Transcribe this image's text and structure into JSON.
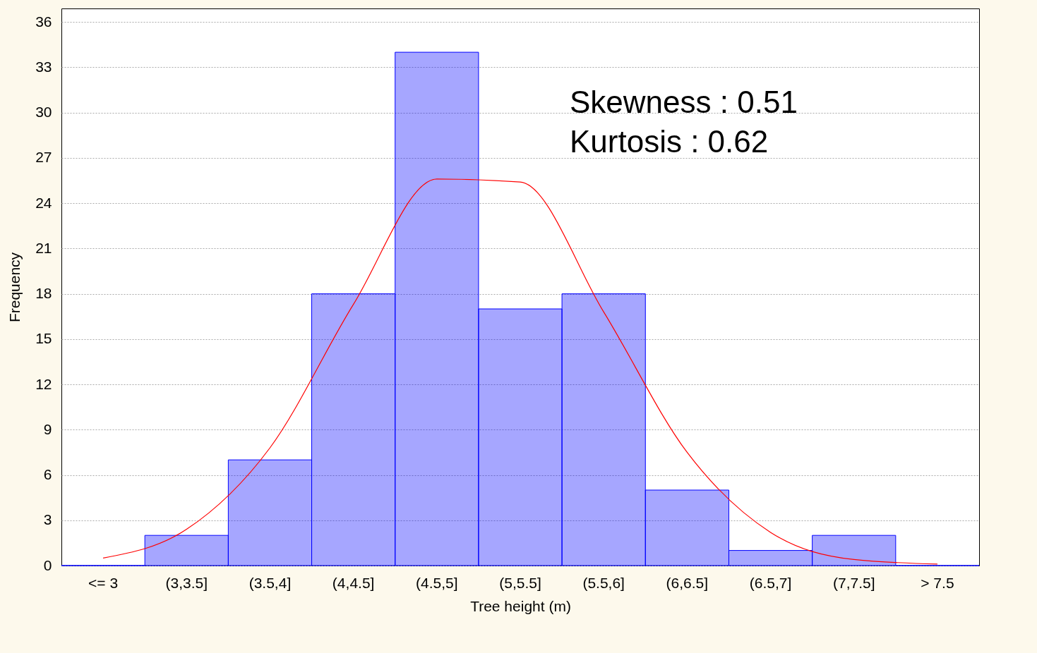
{
  "chart_data": {
    "type": "bar",
    "xlabel": "Tree height (m)",
    "ylabel": "Frequency",
    "categories": [
      "<= 3",
      "(3,3.5]",
      "(3.5,4]",
      "(4,4.5]",
      "(4.5,5]",
      "(5,5.5]",
      "(5.5,6]",
      "(6,6.5]",
      "(6.5,7]",
      "(7,7.5]",
      "> 7.5"
    ],
    "values": [
      0,
      2,
      7,
      18,
      34,
      17,
      18,
      5,
      1,
      2,
      0
    ],
    "color": "#0000ff",
    "series": [
      {
        "type": "line",
        "color": "#ff0000",
        "values": [
          0.5,
          2.4,
          7.8,
          17.3,
          25.6,
          25.4,
          16.8,
          7.5,
          2.2,
          0.4,
          0.1
        ]
      }
    ],
    "ylim": [
      0,
      36.9
    ],
    "yticks": [
      0,
      3,
      6,
      9,
      12,
      15,
      18,
      21,
      24,
      27,
      30,
      33,
      36
    ],
    "grid": "y",
    "annotations": [
      "Skewness : 0.51",
      "Kurtosis : 0.62"
    ]
  }
}
